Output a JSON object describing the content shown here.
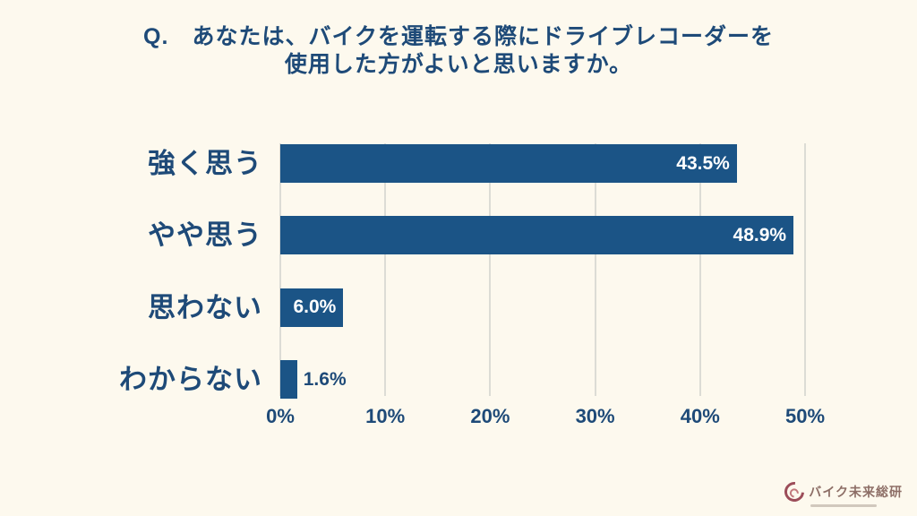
{
  "title": {
    "line1": "Q.　あなたは、バイクを運転する際にドライブレコーダーを",
    "line2": "使用した方がよいと思いますか。"
  },
  "chart_data": {
    "type": "bar",
    "orientation": "horizontal",
    "title": "Q.　あなたは、バイクを運転する際にドライブレコーダーを使用した方がよいと思いますか。",
    "categories": [
      "強く思う",
      "やや思う",
      "思わない",
      "わからない"
    ],
    "values": [
      43.5,
      48.9,
      6.0,
      1.6
    ],
    "value_labels": [
      "43.5%",
      "48.9%",
      "6.0%",
      "1.6%"
    ],
    "xlabel": "",
    "ylabel": "",
    "xlim": [
      0,
      50
    ],
    "x_tick_values": [
      0,
      10,
      20,
      30,
      40,
      50
    ],
    "x_tick_labels": [
      "0%",
      "10%",
      "20%",
      "30%",
      "40%",
      "50%"
    ],
    "grid": "vertical",
    "legend": "none"
  },
  "colors": {
    "background": "#fdf9ee",
    "bar": "#1b5486",
    "text": "#1e4a78",
    "gridline": "#dcdcd5",
    "value_label_inside": "#ffffff",
    "value_label_outside": "#1e4a78",
    "logo_icon": "#8c3040",
    "logo_text": "#8d6e66"
  },
  "logo": {
    "text": "バイク未来総研",
    "icon": "crescent-swirl-icon"
  }
}
